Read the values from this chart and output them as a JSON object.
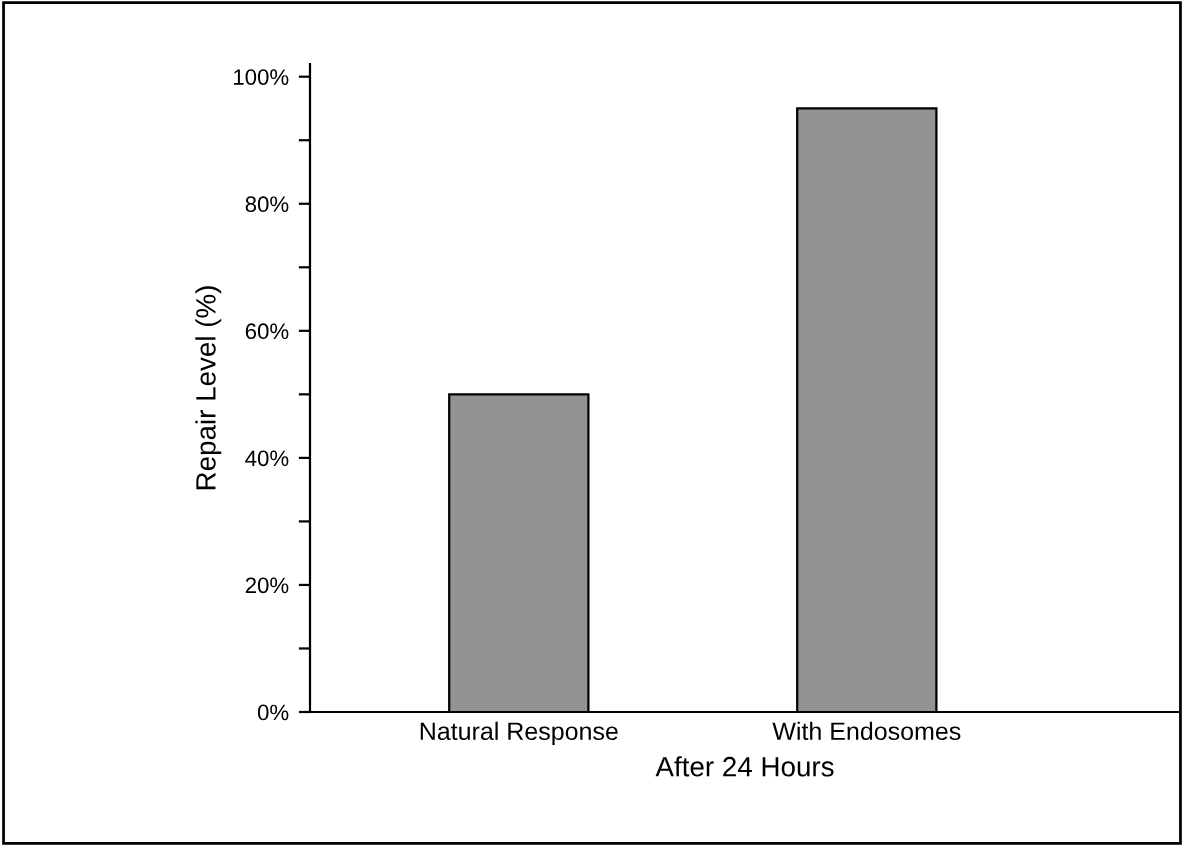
{
  "chart_data": {
    "type": "bar",
    "xlabel": "After 24 Hours",
    "ylabel": "Repair Level (%)",
    "categories": [
      "Natural Response",
      "With Endosomes"
    ],
    "values": [
      50,
      95
    ],
    "color": "#939393",
    "ylim": [
      0,
      102
    ],
    "yticks": [
      {
        "value": 0,
        "label": "0%"
      },
      {
        "value": 10,
        "label": null
      },
      {
        "value": 20,
        "label": "20%"
      },
      {
        "value": 30,
        "label": null
      },
      {
        "value": 40,
        "label": "40%"
      },
      {
        "value": 50,
        "label": null
      },
      {
        "value": 60,
        "label": "60%"
      },
      {
        "value": 70,
        "label": null
      },
      {
        "value": 80,
        "label": "80%"
      },
      {
        "value": 90,
        "label": null
      },
      {
        "value": 100,
        "label": "100%"
      }
    ],
    "grid": false,
    "legend": false
  }
}
